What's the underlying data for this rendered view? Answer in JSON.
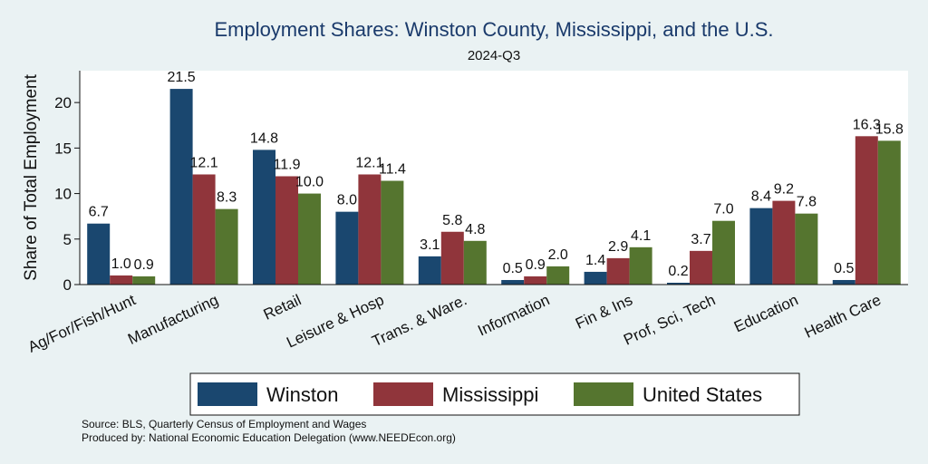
{
  "chart_data": {
    "type": "bar",
    "title": "Employment Shares: Winston County, Mississippi, and the U.S.",
    "subtitle": "2024-Q3",
    "ylabel": "Share of Total Employment",
    "xlabel": "",
    "ylim": [
      0,
      23.5
    ],
    "yticks": [
      "0",
      "5",
      "10",
      "15",
      "20"
    ],
    "grid": false,
    "legend_position": "bottom",
    "categories": [
      "Ag/For/Fish/Hunt",
      "Manufacturing",
      "Retail",
      "Leisure & Hosp",
      "Trans. & Ware.",
      "Information",
      "Fin & Ins",
      "Prof, Sci, Tech",
      "Education",
      "Health Care"
    ],
    "series": [
      {
        "name": "Winston",
        "color": "#1a476f",
        "values": [
          6.7,
          21.5,
          14.8,
          8.0,
          3.1,
          0.5,
          1.4,
          0.2,
          8.4,
          0.5
        ],
        "labels": [
          "6.7",
          "21.5",
          "14.8",
          "8.0",
          "3.1",
          "0.5",
          "1.4",
          "0.2",
          "8.4",
          "0.5"
        ]
      },
      {
        "name": "Mississippi",
        "color": "#90353b",
        "values": [
          1.0,
          12.1,
          11.9,
          12.1,
          5.8,
          0.9,
          2.9,
          3.7,
          9.2,
          16.3
        ],
        "labels": [
          "1.0",
          "12.1",
          "11.9",
          "12.1",
          "5.8",
          "0.9",
          "2.9",
          "3.7",
          "9.2",
          "16.3"
        ]
      },
      {
        "name": "United States",
        "color": "#55752f",
        "values": [
          0.9,
          8.3,
          10.0,
          11.4,
          4.8,
          2.0,
          4.1,
          7.0,
          7.8,
          15.8
        ],
        "labels": [
          "0.9",
          "8.3",
          "10.0",
          "11.4",
          "4.8",
          "2.0",
          "4.1",
          "7.0",
          "7.8",
          "15.8"
        ]
      }
    ]
  },
  "notes": {
    "source": "Source: BLS, Quarterly Census of Employment and Wages",
    "produced": "Produced by: National Economic Education Delegation (www.NEEDEcon.org)"
  }
}
